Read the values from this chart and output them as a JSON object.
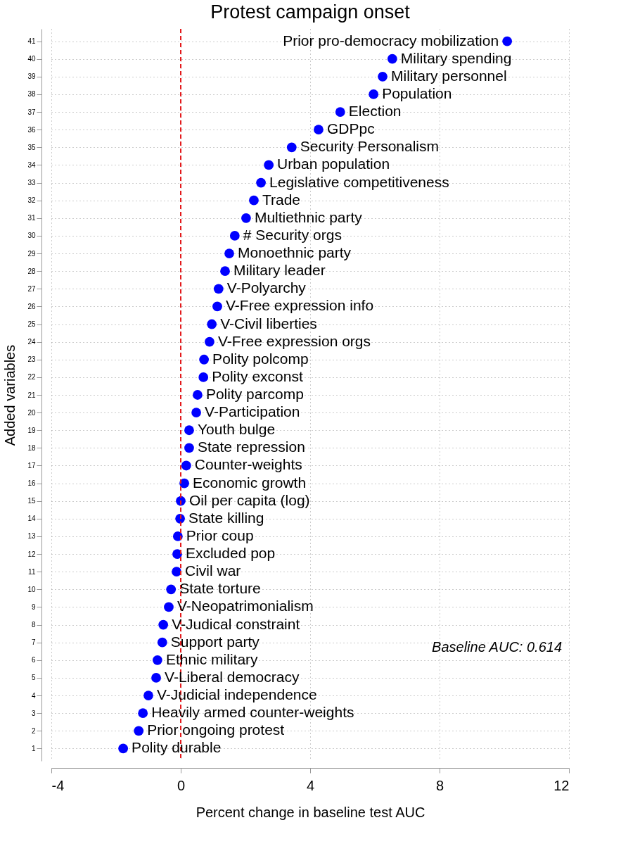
{
  "chart_data": {
    "type": "scatter",
    "title": "Protest campaign onset",
    "xlabel": "Percent change in baseline test AUC",
    "ylabel": "Added variables",
    "x": [
      -1.78,
      -1.3,
      -1.17,
      -1.0,
      -0.76,
      -0.72,
      -0.57,
      -0.54,
      -0.37,
      -0.3,
      -0.13,
      -0.11,
      -0.09,
      -0.02,
      0.0,
      0.11,
      0.17,
      0.26,
      0.26,
      0.48,
      0.52,
      0.7,
      0.72,
      0.89,
      0.96,
      1.13,
      1.17,
      1.37,
      1.5,
      1.67,
      2.02,
      2.26,
      2.48,
      2.72,
      3.43,
      4.26,
      4.93,
      5.96,
      6.24,
      6.54,
      10.09
    ],
    "values": [
      1,
      2,
      3,
      4,
      5,
      6,
      7,
      8,
      9,
      10,
      11,
      12,
      13,
      14,
      15,
      16,
      17,
      18,
      19,
      20,
      21,
      22,
      23,
      24,
      25,
      26,
      27,
      28,
      29,
      30,
      31,
      32,
      33,
      34,
      35,
      36,
      37,
      38,
      39,
      40,
      41
    ],
    "color": "#0000ff",
    "marker": "circle",
    "grid": true,
    "xlim": [
      -4,
      12
    ],
    "xticks": [
      -4,
      0,
      4,
      8,
      12
    ],
    "ylim": [
      0.3,
      41.7
    ],
    "yticks": [
      1,
      2,
      3,
      4,
      5,
      6,
      7,
      8,
      9,
      10,
      11,
      12,
      13,
      14,
      15,
      16,
      17,
      18,
      19,
      20,
      21,
      22,
      23,
      24,
      25,
      26,
      27,
      28,
      29,
      30,
      31,
      32,
      33,
      34,
      35,
      36,
      37,
      38,
      39,
      40,
      41
    ],
    "ref_lines": [
      {
        "axis": "x",
        "value": 0,
        "color": "#e31a1c",
        "line_style": "dashed"
      }
    ],
    "annotations": [
      {
        "text": "Polity durable",
        "x": -1.78,
        "y": 1
      },
      {
        "text": "Prior ongoing protest",
        "x": -1.3,
        "y": 2
      },
      {
        "text": "Heavily armed counter-weights",
        "x": -1.17,
        "y": 3
      },
      {
        "text": "V-Judicial independence",
        "x": -1.0,
        "y": 4
      },
      {
        "text": "V-Liberal democracy",
        "x": -0.76,
        "y": 5
      },
      {
        "text": "Ethnic military",
        "x": -0.72,
        "y": 6
      },
      {
        "text": "Support party",
        "x": -0.57,
        "y": 7
      },
      {
        "text": "V-Judical constraint",
        "x": -0.54,
        "y": 8
      },
      {
        "text": "V-Neopatrimonialism",
        "x": -0.37,
        "y": 9
      },
      {
        "text": "State torture",
        "x": -0.3,
        "y": 10
      },
      {
        "text": "Civil war",
        "x": -0.13,
        "y": 11
      },
      {
        "text": "Excluded pop",
        "x": -0.11,
        "y": 12
      },
      {
        "text": "Prior coup",
        "x": -0.09,
        "y": 13
      },
      {
        "text": "State killing",
        "x": -0.02,
        "y": 14
      },
      {
        "text": "Oil per capita (log)",
        "x": 0.0,
        "y": 15
      },
      {
        "text": "Economic growth",
        "x": 0.11,
        "y": 16
      },
      {
        "text": "Counter-weights",
        "x": 0.17,
        "y": 17
      },
      {
        "text": "State repression",
        "x": 0.26,
        "y": 18
      },
      {
        "text": "Youth bulge",
        "x": 0.26,
        "y": 19
      },
      {
        "text": "V-Participation",
        "x": 0.48,
        "y": 20
      },
      {
        "text": "Polity parcomp",
        "x": 0.52,
        "y": 21
      },
      {
        "text": "Polity exconst",
        "x": 0.7,
        "y": 22
      },
      {
        "text": "Polity polcomp",
        "x": 0.72,
        "y": 23
      },
      {
        "text": "V-Free expression orgs",
        "x": 0.89,
        "y": 24
      },
      {
        "text": "V-Civil liberties",
        "x": 0.96,
        "y": 25
      },
      {
        "text": "V-Free expression info",
        "x": 1.13,
        "y": 26
      },
      {
        "text": "V-Polyarchy",
        "x": 1.17,
        "y": 27
      },
      {
        "text": "Military leader",
        "x": 1.37,
        "y": 28
      },
      {
        "text": "Monoethnic party",
        "x": 1.5,
        "y": 29
      },
      {
        "text": "# Security orgs",
        "x": 1.67,
        "y": 30
      },
      {
        "text": "Multiethnic party",
        "x": 2.02,
        "y": 31
      },
      {
        "text": "Trade",
        "x": 2.26,
        "y": 32
      },
      {
        "text": "Legislative competitiveness",
        "x": 2.48,
        "y": 33
      },
      {
        "text": "Urban population",
        "x": 2.72,
        "y": 34
      },
      {
        "text": "Security Personalism",
        "x": 3.43,
        "y": 35
      },
      {
        "text": "GDPpc",
        "x": 4.26,
        "y": 36
      },
      {
        "text": "Election",
        "x": 4.93,
        "y": 37
      },
      {
        "text": "Population",
        "x": 5.96,
        "y": 38
      },
      {
        "text": "Military personnel",
        "x": 6.24,
        "y": 39
      },
      {
        "text": "Military spending",
        "x": 6.54,
        "y": 40
      },
      {
        "text": "Prior pro-democracy mobilization",
        "x": 10.09,
        "y": 41
      },
      "Baseline AUC: 0.614"
    ]
  }
}
